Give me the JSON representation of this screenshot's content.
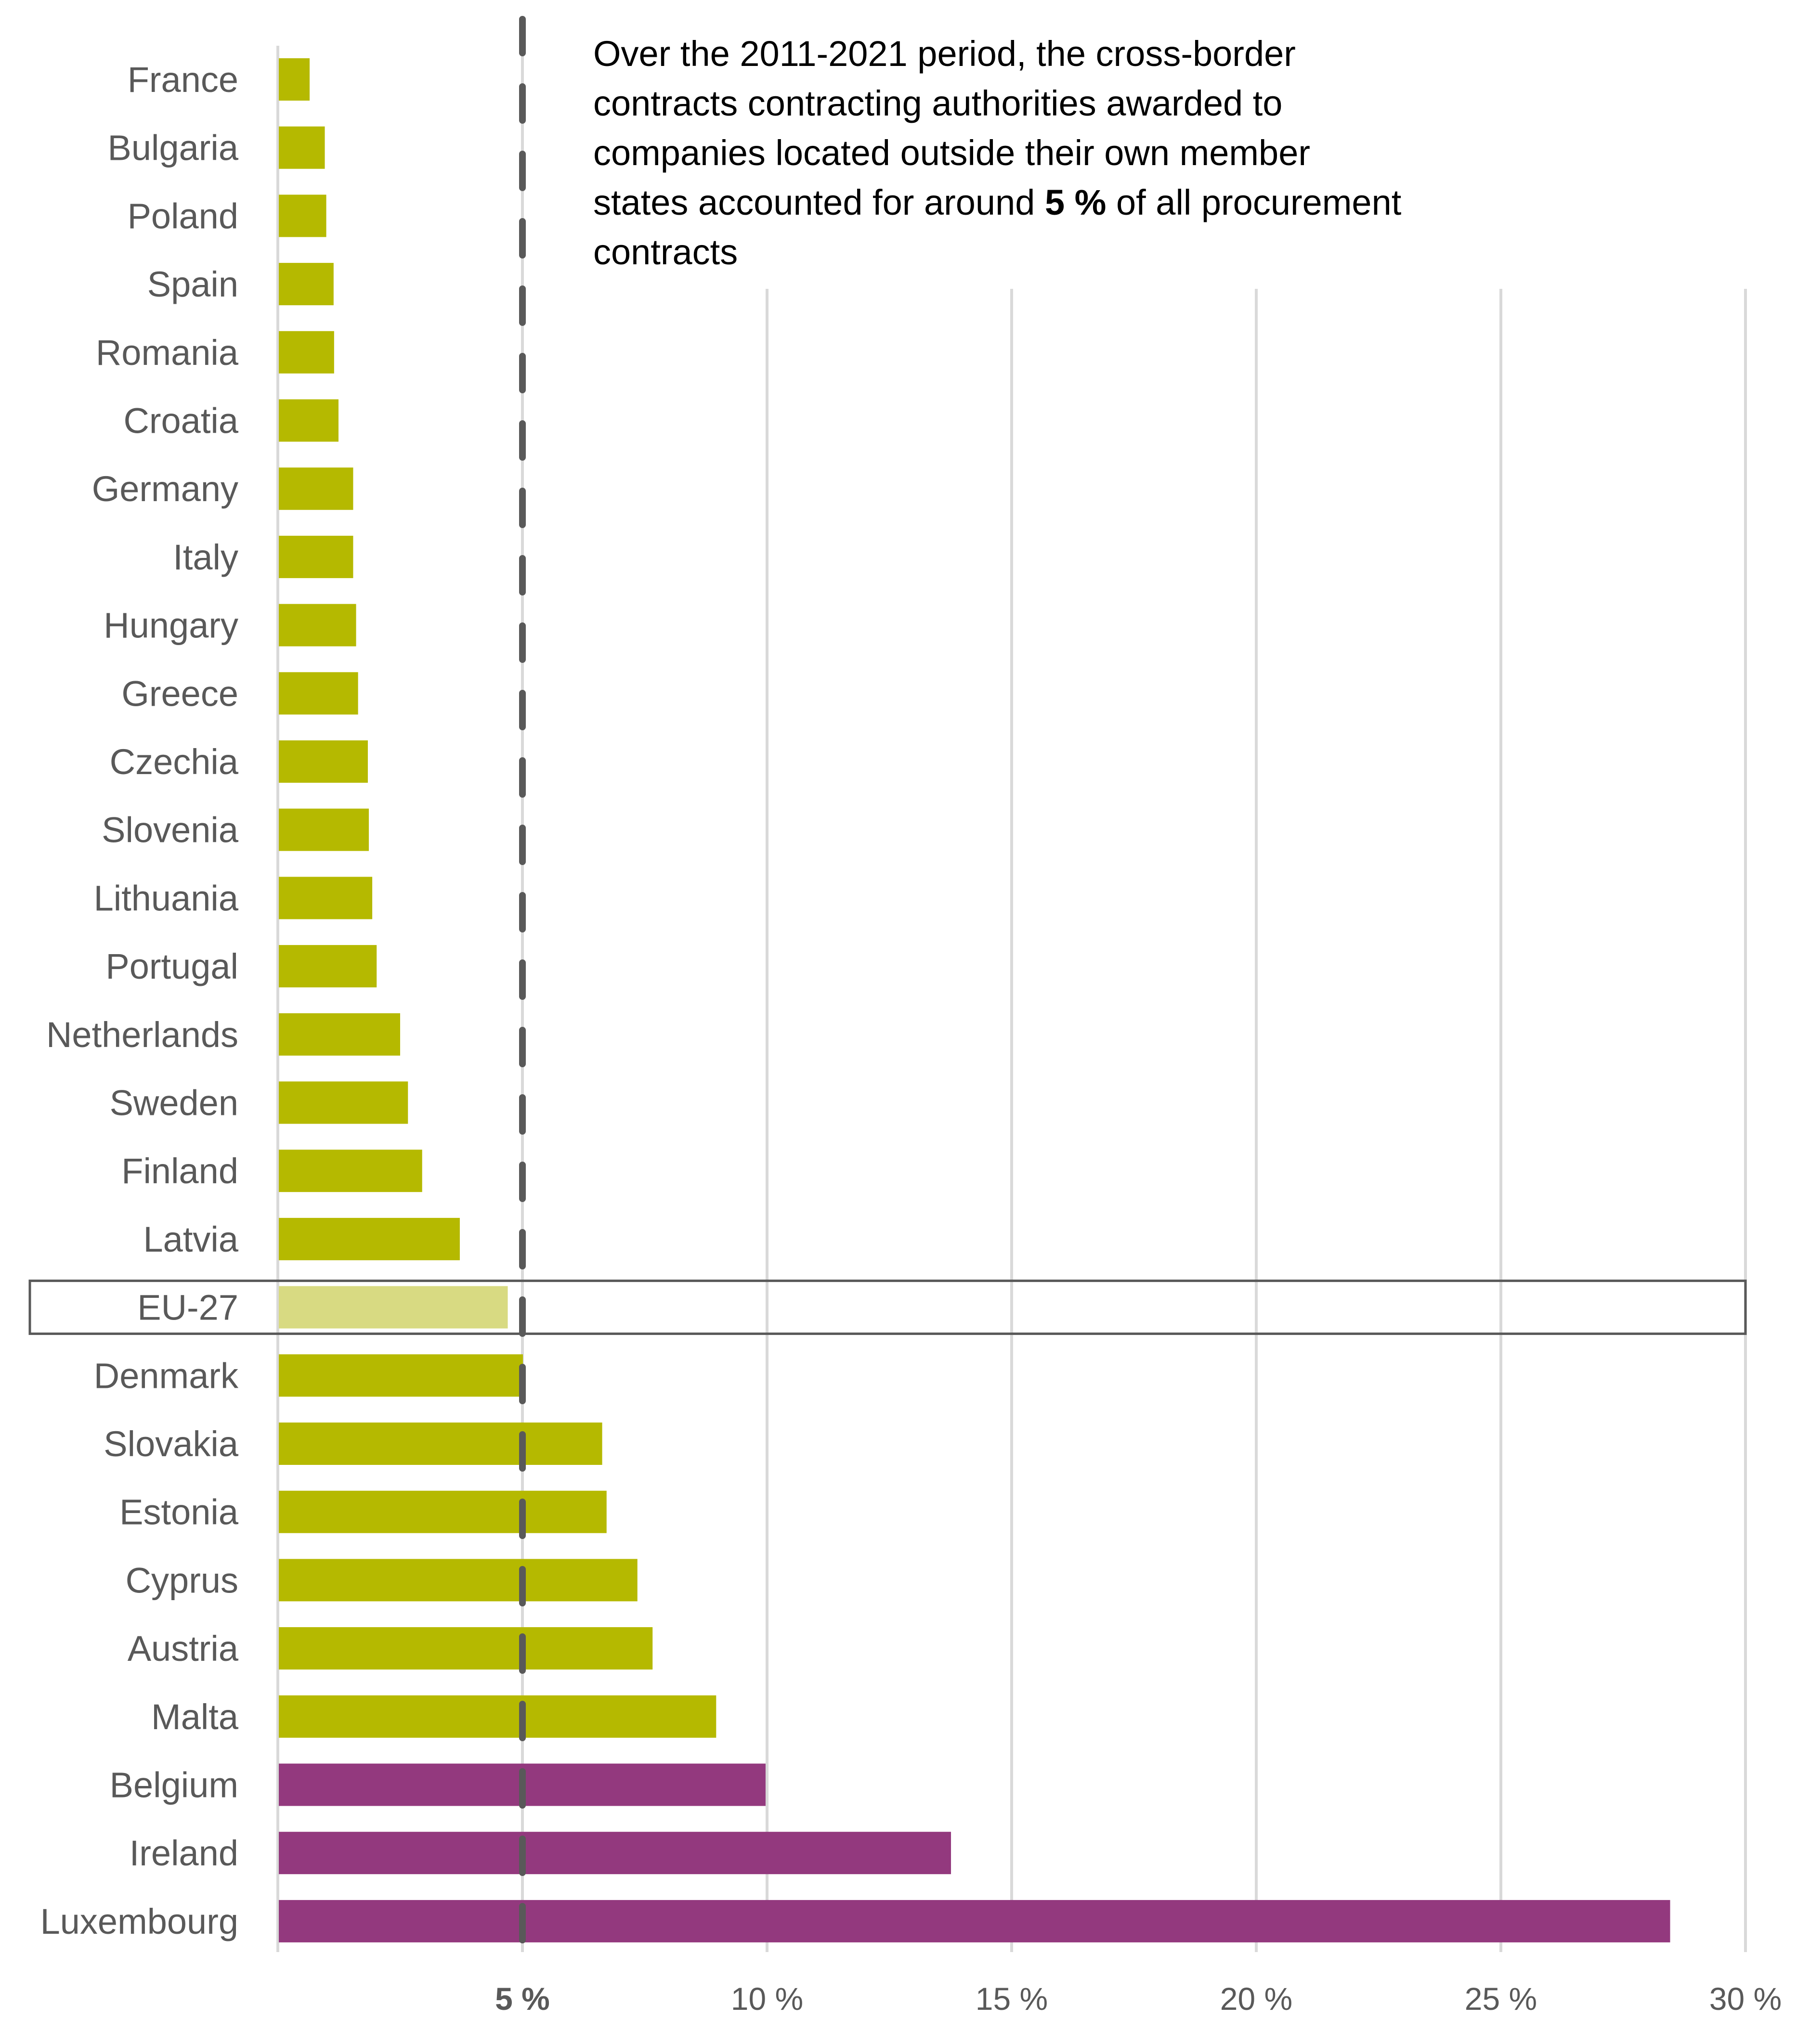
{
  "chart_data": {
    "type": "bar",
    "orientation": "horizontal",
    "title": "",
    "xlabel": "",
    "ylabel": "",
    "xlim": [
      0,
      30
    ],
    "grid": true,
    "x_ticks": [
      {
        "value": 5,
        "label": "5 %",
        "bold": true
      },
      {
        "value": 10,
        "label": "10 %",
        "bold": false
      },
      {
        "value": 15,
        "label": "15 %",
        "bold": false
      },
      {
        "value": 20,
        "label": "20 %",
        "bold": false
      },
      {
        "value": 25,
        "label": "25 %",
        "bold": false
      },
      {
        "value": 30,
        "label": "30 %",
        "bold": false
      }
    ],
    "reference_line": {
      "value": 5,
      "style": "dashed"
    },
    "highlighted_category": "EU-27",
    "colors": {
      "default": "#b5b900",
      "eu_average": "#d8da82",
      "high": "#93397e",
      "reference": "#595959",
      "grid": "#d9d9d9",
      "label": "#595959"
    },
    "categories": [
      "France",
      "Bulgaria",
      "Poland",
      "Spain",
      "Romania",
      "Croatia",
      "Germany",
      "Italy",
      "Hungary",
      "Greece",
      "Czechia",
      "Slovenia",
      "Lithuania",
      "Portugal",
      "Netherlands",
      "Sweden",
      "Finland",
      "Latvia",
      "EU-27",
      "Denmark",
      "Slovakia",
      "Estonia",
      "Cyprus",
      "Austria",
      "Malta",
      "Belgium",
      "Ireland",
      "Luxembourg"
    ],
    "values": [
      0.65,
      0.96,
      0.99,
      1.14,
      1.15,
      1.24,
      1.54,
      1.54,
      1.6,
      1.64,
      1.84,
      1.86,
      1.93,
      2.02,
      2.5,
      2.66,
      2.95,
      3.72,
      4.7,
      5.01,
      6.63,
      6.72,
      7.35,
      7.66,
      8.96,
      9.97,
      13.76,
      28.46
    ],
    "bar_groups": [
      "default",
      "default",
      "default",
      "default",
      "default",
      "default",
      "default",
      "default",
      "default",
      "default",
      "default",
      "default",
      "default",
      "default",
      "default",
      "default",
      "default",
      "default",
      "eu_average",
      "default",
      "default",
      "default",
      "default",
      "default",
      "default",
      "high",
      "high",
      "high"
    ],
    "annotation": {
      "text_before": "Over the 2011-2021 period, the cross-border contracts contracting authorities awarded to companies located outside their own member states accounted for around ",
      "bold": "5 %",
      "text_after": " of all procurement contracts"
    }
  }
}
